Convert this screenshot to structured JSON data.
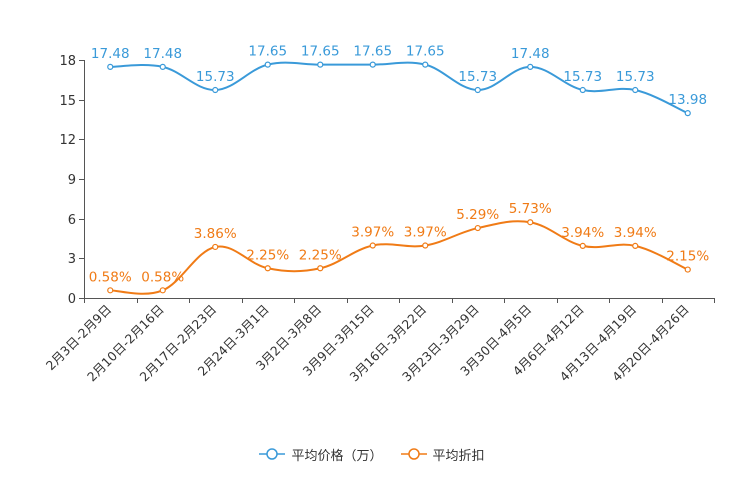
{
  "chart_data": {
    "type": "line",
    "categories": [
      "2月3日-2月9日",
      "2月10日-2月16日",
      "2月17日-2月23日",
      "2月24日-3月1日",
      "3月2日-3月8日",
      "3月9日-3月15日",
      "3月16日-3月22日",
      "3月23日-3月29日",
      "3月30日-4月5日",
      "4月6日-4月12日",
      "4月13日-4月19日",
      "4月20日-4月26日"
    ],
    "series": [
      {
        "name": "平均价格（万）",
        "color": "#3a9ad9",
        "values": [
          17.48,
          17.48,
          15.73,
          17.65,
          17.65,
          17.65,
          17.65,
          15.73,
          17.48,
          15.73,
          15.73,
          13.98
        ],
        "labels": [
          "17.48",
          "17.48",
          "15.73",
          "17.65",
          "17.65",
          "17.65",
          "17.65",
          "15.73",
          "17.48",
          "15.73",
          "15.73",
          "13.98"
        ]
      },
      {
        "name": "平均折扣",
        "color": "#f07b16",
        "values": [
          0.58,
          0.58,
          3.86,
          2.25,
          2.25,
          3.97,
          3.97,
          5.29,
          5.73,
          3.94,
          3.94,
          2.15
        ],
        "labels": [
          "0.58%",
          "0.58%",
          "3.86%",
          "2.25%",
          "2.25%",
          "3.97%",
          "3.97%",
          "5.29%",
          "5.73%",
          "3.94%",
          "3.94%",
          "2.15%"
        ]
      }
    ],
    "ylim": [
      0,
      18
    ],
    "yticks": [
      "0",
      "3",
      "6",
      "9",
      "12",
      "15",
      "18"
    ],
    "title": "",
    "xlabel": "",
    "ylabel": "",
    "legend_position": "bottom"
  }
}
